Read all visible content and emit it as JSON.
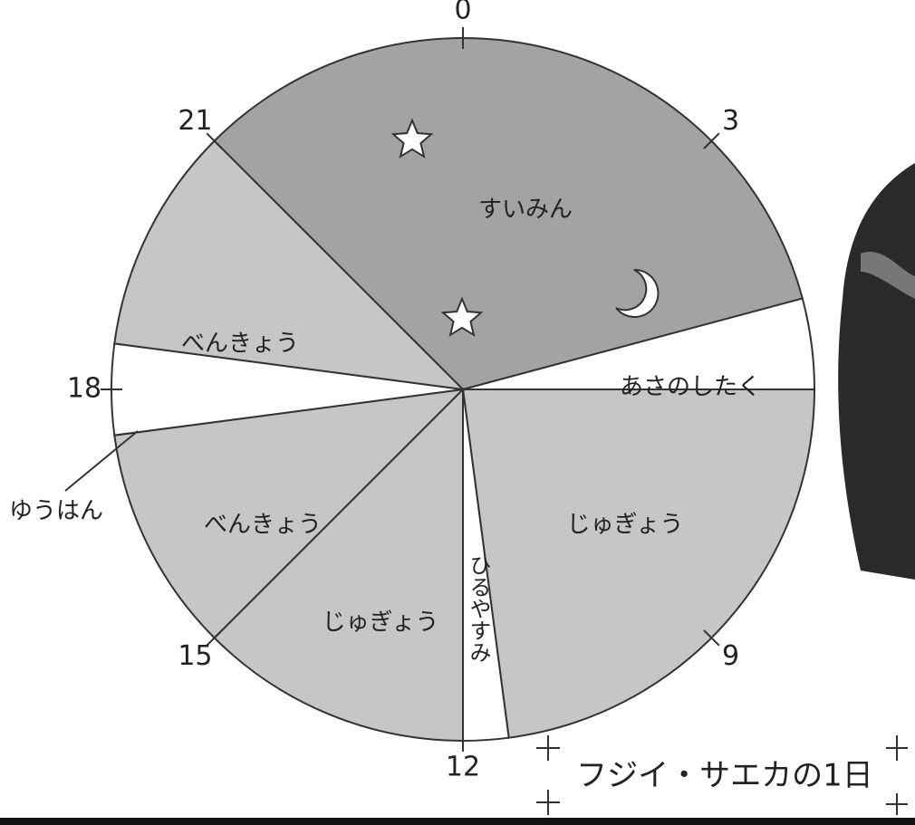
{
  "chart_data": {
    "type": "pie",
    "title": "フジイ・サエカの1日",
    "categories": [
      "すいみん",
      "あさのしたく",
      "じゅぎょう",
      "ひるやすみ",
      "じゅぎょう",
      "べんきょう",
      "ゆうはん",
      "べんきょう"
    ],
    "values": [
      8,
      1,
      5.5,
      0.5,
      3,
      2.5,
      1,
      2.5
    ],
    "colors": [
      "#a3a3a3",
      "#ffffff",
      "#c6c6c6",
      "#ffffff",
      "#c6c6c6",
      "#c6c6c6",
      "#ffffff",
      "#c6c6c6"
    ],
    "start": 21,
    "lim": [
      0,
      24
    ],
    "ticks": [
      0,
      3,
      9,
      12,
      15,
      18,
      21
    ]
  }
}
